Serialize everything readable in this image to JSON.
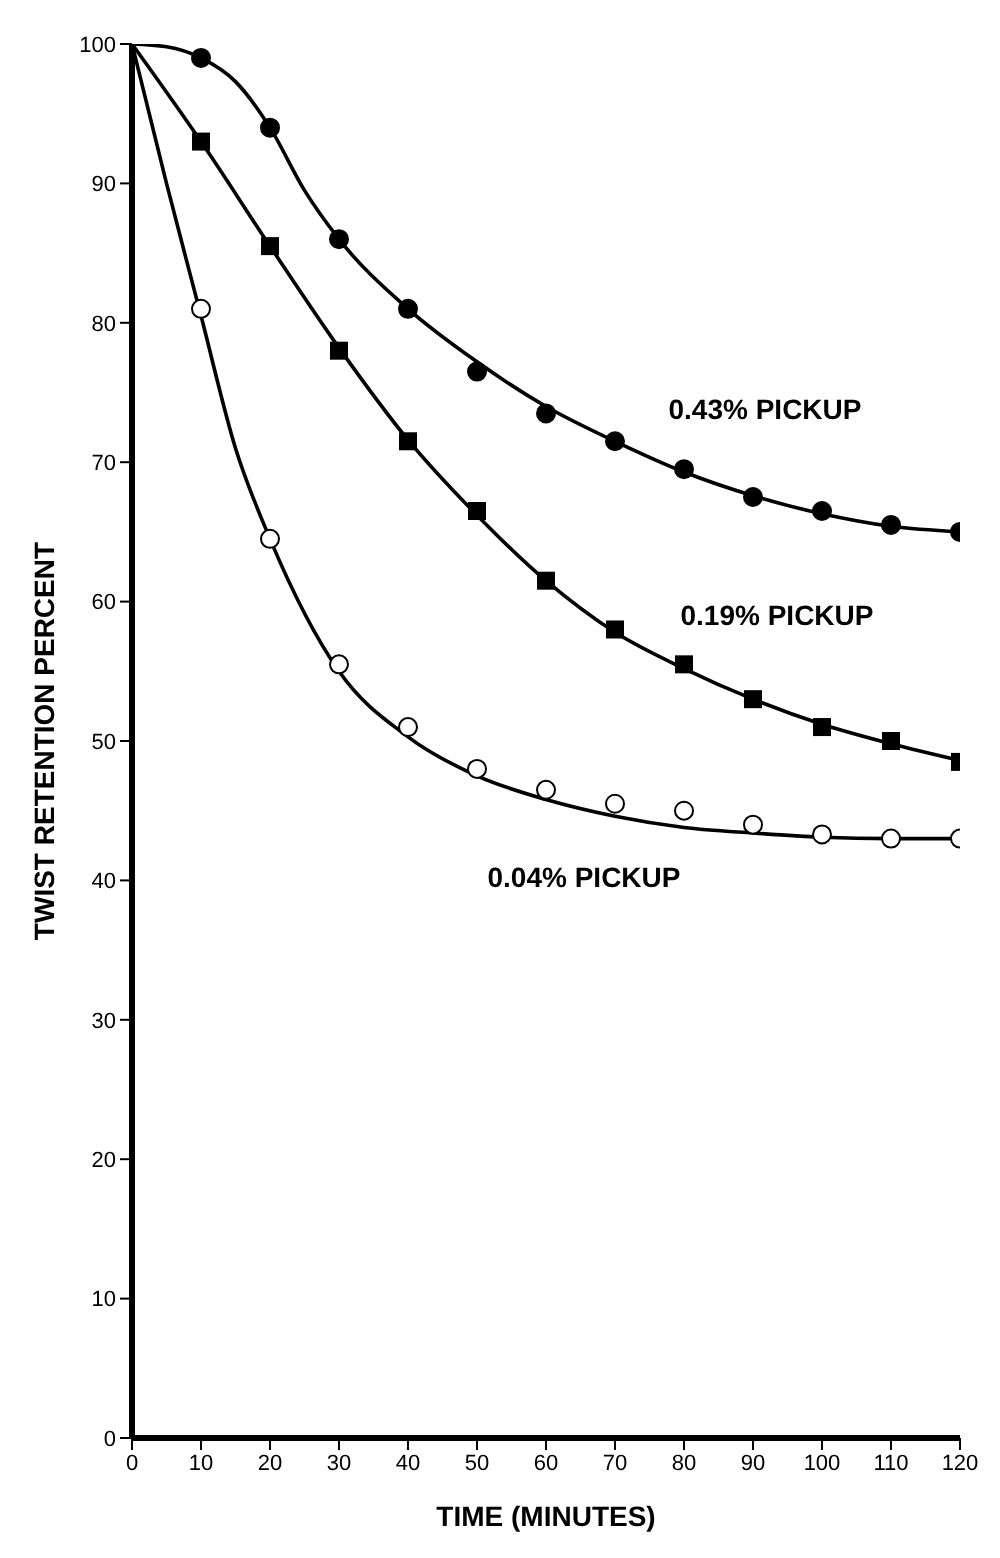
{
  "chart_data": {
    "type": "scatter",
    "xlabel": "TIME (MINUTES)",
    "ylabel": "TWIST RETENTION PERCENT",
    "xlim": [
      0,
      120
    ],
    "xticks": [
      0,
      10,
      20,
      30,
      40,
      50,
      60,
      70,
      80,
      90,
      100,
      110,
      120
    ],
    "ylim": [
      0,
      100
    ],
    "yticks": [
      0,
      10,
      20,
      30,
      40,
      50,
      60,
      70,
      80,
      90,
      100
    ],
    "grid": false,
    "legend": false,
    "series": [
      {
        "type": "line",
        "marker": "none",
        "color": "#000000",
        "x": [
          0,
          5,
          10,
          15,
          20,
          25,
          30,
          40,
          50,
          60,
          70,
          80,
          90,
          100,
          110,
          120
        ],
        "values": [
          100,
          99.8,
          99,
          97.3,
          94,
          89.5,
          86,
          81,
          77.2,
          74,
          71.5,
          69.3,
          67.6,
          66.3,
          65.4,
          65
        ]
      },
      {
        "type": "line",
        "marker": "none",
        "color": "#000000",
        "x": [
          0,
          10,
          20,
          30,
          40,
          50,
          60,
          70,
          80,
          90,
          100,
          110,
          120
        ],
        "values": [
          100,
          93,
          85.5,
          78.2,
          71.6,
          66.2,
          61.5,
          57.8,
          55.2,
          53,
          51.2,
          49.8,
          48.6
        ]
      },
      {
        "type": "line",
        "marker": "none",
        "color": "#000000",
        "x": [
          0,
          5,
          10,
          15,
          20,
          30,
          40,
          50,
          60,
          70,
          80,
          90,
          100,
          110,
          120
        ],
        "values": [
          100,
          90,
          80.5,
          71,
          64.5,
          55,
          50.3,
          47.5,
          45.8,
          44.6,
          43.8,
          43.4,
          43.1,
          43,
          43
        ]
      },
      {
        "name": "0.43% PICKUP",
        "marker": "circle",
        "color": "#000000",
        "x": [
          10,
          20,
          30,
          40,
          50,
          60,
          70,
          80,
          90,
          100,
          110,
          120
        ],
        "values": [
          99,
          94,
          86,
          81,
          76.5,
          73.5,
          71.5,
          69.5,
          67.5,
          66.5,
          65.5,
          65
        ]
      },
      {
        "name": "0.19% PICKUP",
        "marker": "square",
        "color": "#000000",
        "x": [
          10,
          20,
          30,
          40,
          50,
          60,
          70,
          80,
          90,
          100,
          110,
          120
        ],
        "values": [
          93,
          85.5,
          78,
          71.5,
          66.5,
          61.5,
          58,
          55.5,
          53,
          51,
          50,
          48.5
        ]
      },
      {
        "name": "0.04% PICKUP",
        "marker": "circle",
        "color": "#ffffff",
        "x": [
          10,
          20,
          30,
          40,
          50,
          60,
          70,
          80,
          90,
          100,
          110,
          120
        ],
        "values": [
          81,
          64.5,
          55.5,
          51,
          48,
          46.5,
          45.5,
          45,
          44,
          43.3,
          43,
          43
        ]
      }
    ]
  }
}
